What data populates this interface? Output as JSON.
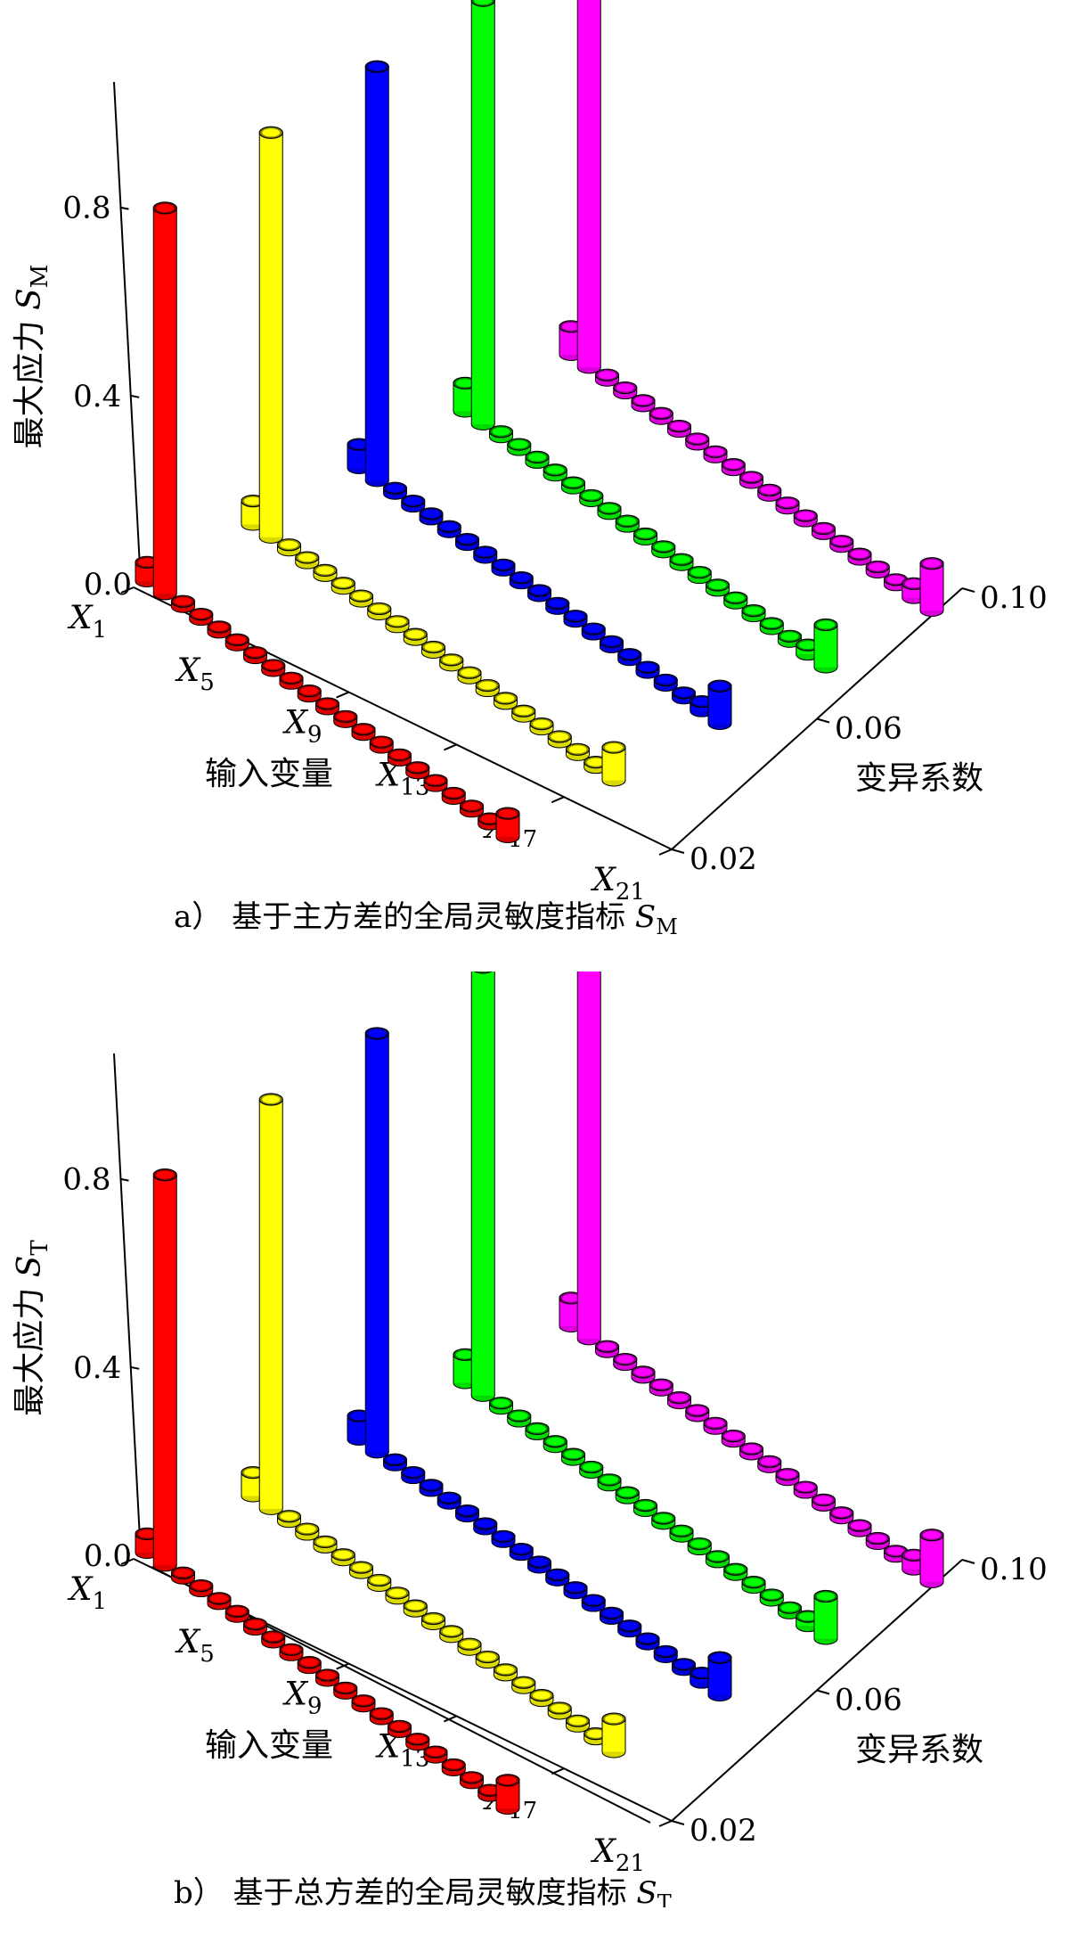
{
  "chart_data": [
    {
      "type": "bar3d",
      "caption_prefix": "a）",
      "caption_text": "基于主方差的全局灵敏度指标",
      "caption_symbol": "S",
      "caption_sub": "M",
      "zlabel_text": "最大应力",
      "zlabel_symbol": "S",
      "zlabel_sub": "M",
      "xlabel": "输入变量",
      "ylabel": "变异系数",
      "z_ticks": [
        "0.0",
        "0.4",
        "0.8"
      ],
      "z_tick_values": [
        0,
        0.4,
        0.8
      ],
      "zlim": [
        0,
        1.0
      ],
      "x_ticks": [
        {
          "s": "X",
          "sub": "1",
          "i": 1
        },
        {
          "s": "X",
          "sub": "5",
          "i": 5
        },
        {
          "s": "X",
          "sub": "9",
          "i": 9
        },
        {
          "s": "X",
          "sub": "13",
          "i": 13
        },
        {
          "s": "X",
          "sub": "17",
          "i": 17
        },
        {
          "s": "X",
          "sub": "21",
          "i": 21
        }
      ],
      "y_ticks": [
        {
          "label": "0.02",
          "i": 0
        },
        {
          "label": "0.06",
          "i": 2
        },
        {
          "label": "0.10",
          "i": 4
        }
      ],
      "variables": 21,
      "series": [
        {
          "cov": 0.02,
          "color": "#ff0000",
          "values": [
            0.04,
            0.82,
            0.01,
            0,
            0,
            0,
            0,
            0,
            0,
            0,
            0,
            0,
            0,
            0,
            0,
            0,
            0,
            0,
            0,
            0,
            0.05
          ]
        },
        {
          "cov": 0.04,
          "color": "#ffff00",
          "values": [
            0.05,
            0.86,
            0.01,
            0,
            0,
            0,
            0,
            0,
            0,
            0,
            0,
            0,
            0,
            0,
            0,
            0,
            0,
            0,
            0,
            0,
            0.07
          ]
        },
        {
          "cov": 0.06,
          "color": "#0000ff",
          "values": [
            0.05,
            0.88,
            0.01,
            0,
            0,
            0,
            0,
            0,
            0,
            0,
            0,
            0,
            0,
            0,
            0,
            0,
            0,
            0,
            0,
            0.02,
            0.08
          ]
        },
        {
          "cov": 0.08,
          "color": "#00ff00",
          "values": [
            0.06,
            0.9,
            0.01,
            0,
            0,
            0,
            0,
            0,
            0,
            0,
            0,
            0,
            0,
            0,
            0,
            0,
            0,
            0,
            0,
            0.02,
            0.09
          ]
        },
        {
          "cov": 0.1,
          "color": "#ff00ff",
          "values": [
            0.06,
            0.92,
            0.01,
            0,
            0,
            0,
            0,
            0,
            0,
            0,
            0,
            0,
            0,
            0,
            0,
            0,
            0,
            0,
            0,
            0.03,
            0.1
          ]
        }
      ]
    },
    {
      "type": "bar3d",
      "caption_prefix": "b）",
      "caption_text": "基于总方差的全局灵敏度指标",
      "caption_symbol": "S",
      "caption_sub": "T",
      "zlabel_text": "最大应力",
      "zlabel_symbol": "S",
      "zlabel_sub": "T",
      "xlabel": "输入变量",
      "ylabel": "变异系数",
      "z_ticks": [
        "0.0",
        "0.4",
        "0.8"
      ],
      "z_tick_values": [
        0,
        0.4,
        0.8
      ],
      "zlim": [
        0,
        1.0
      ],
      "x_ticks": [
        {
          "s": "X",
          "sub": "1",
          "i": 1
        },
        {
          "s": "X",
          "sub": "5",
          "i": 5
        },
        {
          "s": "X",
          "sub": "9",
          "i": 9
        },
        {
          "s": "X",
          "sub": "13",
          "i": 13
        },
        {
          "s": "X",
          "sub": "17",
          "i": 17
        },
        {
          "s": "X",
          "sub": "21",
          "i": 21
        }
      ],
      "y_ticks": [
        {
          "label": "0.02",
          "i": 0
        },
        {
          "label": "0.06",
          "i": 2
        },
        {
          "label": "0.10",
          "i": 4
        }
      ],
      "variables": 21,
      "series": [
        {
          "cov": 0.02,
          "color": "#ff0000",
          "values": [
            0.04,
            0.83,
            0.01,
            0,
            0,
            0,
            0,
            0,
            0,
            0,
            0,
            0,
            0,
            0,
            0,
            0,
            0,
            0,
            0,
            0,
            0.06
          ]
        },
        {
          "cov": 0.04,
          "color": "#ffff00",
          "values": [
            0.05,
            0.87,
            0.01,
            0,
            0,
            0,
            0,
            0,
            0,
            0,
            0,
            0,
            0,
            0,
            0,
            0,
            0,
            0,
            0,
            0,
            0.07
          ]
        },
        {
          "cov": 0.06,
          "color": "#0000ff",
          "values": [
            0.05,
            0.89,
            0.01,
            0,
            0,
            0,
            0,
            0,
            0,
            0,
            0,
            0,
            0,
            0,
            0,
            0,
            0,
            0,
            0,
            0.02,
            0.08
          ]
        },
        {
          "cov": 0.08,
          "color": "#00ff00",
          "values": [
            0.06,
            0.91,
            0.01,
            0,
            0,
            0,
            0,
            0,
            0,
            0,
            0,
            0,
            0,
            0,
            0,
            0,
            0,
            0,
            0,
            0.02,
            0.09
          ]
        },
        {
          "cov": 0.1,
          "color": "#ff00ff",
          "values": [
            0.06,
            0.93,
            0.01,
            0,
            0,
            0,
            0,
            0,
            0,
            0,
            0,
            0,
            0,
            0,
            0,
            0,
            0,
            0,
            0,
            0.03,
            0.1
          ]
        }
      ]
    }
  ]
}
